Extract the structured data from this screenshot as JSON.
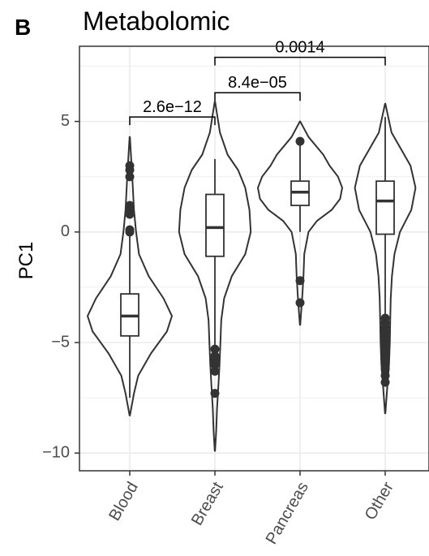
{
  "panel_label": "B",
  "chart_data": {
    "type": "violin",
    "title": "Metabolomic",
    "xlabel": "",
    "ylabel": "PC1",
    "ylim": [
      -10.8,
      8.4
    ],
    "yticks": [
      -10,
      -5,
      0,
      5
    ],
    "ytick_labels": [
      "−10",
      "−5",
      "0",
      "5"
    ],
    "grid": true,
    "categories": [
      "Blood",
      "Breast",
      "Pancreas",
      "Other"
    ],
    "violins": [
      {
        "category": "Blood",
        "min": -8.3,
        "max": 4.3,
        "profile": [
          [
            4.3,
            0.003
          ],
          [
            2.5,
            0.06
          ],
          [
            1.0,
            0.1
          ],
          [
            0,
            0.15
          ],
          [
            -1.0,
            0.22
          ],
          [
            -2.0,
            0.45
          ],
          [
            -3.0,
            0.8
          ],
          [
            -3.8,
            1.0
          ],
          [
            -4.5,
            0.88
          ],
          [
            -5.5,
            0.5
          ],
          [
            -6.5,
            0.2
          ],
          [
            -7.3,
            0.1
          ],
          [
            -8.3,
            0.003
          ]
        ],
        "box": {
          "q1": -4.7,
          "median": -3.8,
          "q3": -2.8,
          "whisker_low": -7.5,
          "whisker_high": 0
        },
        "outliers": [
          3.0,
          2.8,
          2.5,
          1.2,
          1.0,
          0.8,
          0.1,
          0
        ]
      },
      {
        "category": "Breast",
        "min": -9.9,
        "max": 5.9,
        "profile": [
          [
            5.9,
            0.003
          ],
          [
            4.5,
            0.12
          ],
          [
            3.5,
            0.3
          ],
          [
            2.8,
            0.55
          ],
          [
            2.0,
            0.72
          ],
          [
            1.0,
            0.82
          ],
          [
            0,
            0.85
          ],
          [
            -1.0,
            0.72
          ],
          [
            -2.0,
            0.4
          ],
          [
            -3.0,
            0.22
          ],
          [
            -4.0,
            0.15
          ],
          [
            -5.0,
            0.13
          ],
          [
            -6.0,
            0.11
          ],
          [
            -7.0,
            0.08
          ],
          [
            -8.0,
            0.05
          ],
          [
            -9.0,
            0.03
          ],
          [
            -9.9,
            0.003
          ]
        ],
        "box": {
          "q1": -1.1,
          "median": 0.2,
          "q3": 1.7,
          "whisker_low": -5.5,
          "whisker_high": 3.3
        },
        "outliers": [
          -5.3,
          -5.6,
          -5.8,
          -6.0,
          -6.3,
          -7.3
        ]
      },
      {
        "category": "Pancreas",
        "min": -4.2,
        "max": 5.0,
        "profile": [
          [
            5.0,
            0.003
          ],
          [
            4.3,
            0.2
          ],
          [
            3.5,
            0.55
          ],
          [
            3.0,
            0.7
          ],
          [
            2.5,
            0.9
          ],
          [
            2.0,
            1.0
          ],
          [
            1.5,
            0.95
          ],
          [
            1.0,
            0.75
          ],
          [
            0.5,
            0.4
          ],
          [
            0,
            0.2
          ],
          [
            -1.0,
            0.1
          ],
          [
            -2.0,
            0.08
          ],
          [
            -3.0,
            0.05
          ],
          [
            -4.2,
            0.003
          ]
        ],
        "box": {
          "q1": 1.2,
          "median": 1.8,
          "q3": 2.3,
          "whisker_low": 0,
          "whisker_high": 4.0
        },
        "outliers": [
          4.1,
          -2.2,
          -3.2
        ]
      },
      {
        "category": "Other",
        "min": -8.2,
        "max": 5.8,
        "profile": [
          [
            5.8,
            0.003
          ],
          [
            4.5,
            0.15
          ],
          [
            3.5,
            0.45
          ],
          [
            3.0,
            0.6
          ],
          [
            2.0,
            0.72
          ],
          [
            1.0,
            0.62
          ],
          [
            0,
            0.35
          ],
          [
            -1.0,
            0.22
          ],
          [
            -2.0,
            0.16
          ],
          [
            -3.0,
            0.13
          ],
          [
            -4.0,
            0.12
          ],
          [
            -5.0,
            0.11
          ],
          [
            -6.0,
            0.09
          ],
          [
            -7.0,
            0.05
          ],
          [
            -8.2,
            0.003
          ]
        ],
        "box": {
          "q1": -0.1,
          "median": 1.4,
          "q3": 2.3,
          "whisker_low": -3.8,
          "whisker_high": 5.2
        },
        "outliers": [
          -3.9,
          -4.1,
          -4.3,
          -4.5,
          -4.7,
          -4.9,
          -5.1,
          -5.3,
          -5.5,
          -5.7,
          -5.9,
          -6.2,
          -6.5,
          -6.8
        ]
      }
    ],
    "comparisons": [
      {
        "from": "Blood",
        "to": "Breast",
        "label": "2.6e−12",
        "y": 5.2
      },
      {
        "from": "Breast",
        "to": "Pancreas",
        "label": "8.4e−05",
        "y": 6.3
      },
      {
        "from": "Breast",
        "to": "Other",
        "label": "0.0014",
        "y": 7.9
      }
    ],
    "colors": {
      "line": "#333333",
      "grid": "#ebebeb",
      "panel_border": "#333333"
    }
  }
}
